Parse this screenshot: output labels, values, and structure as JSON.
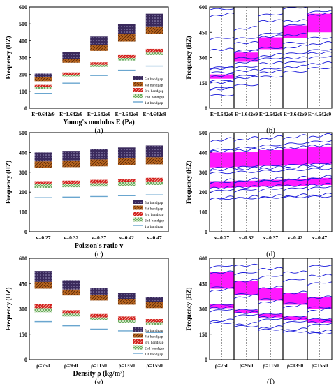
{
  "chart_data": [
    {
      "panel": "a",
      "type": "bar",
      "caption": "(a)",
      "ylabel": "Frequency (HZ)",
      "xlabel": "Young's modulus E (Pa)",
      "ylim": [
        0,
        600
      ],
      "yticks": [
        0,
        100,
        200,
        300,
        400,
        500,
        600
      ],
      "categories": [
        "E=0.642e9",
        "E=1.642e9",
        "E=2.642e9",
        "E=3.642e9",
        "E=4.642e9"
      ],
      "legend": [
        "5st bandgap",
        "4st bandgap",
        "3rd bandgap",
        "2nd bandgap",
        "1st bandgap"
      ],
      "legend_position": "bottom-right",
      "series": [
        {
          "name": "1st bandgap",
          "lines": [
            88,
            148,
            194,
            225,
            250
          ]
        },
        {
          "name": "2nd bandgap",
          "bands": [
            [
              115,
              125
            ],
            [
              188,
              198
            ],
            [
              245,
              258
            ],
            [
              283,
              298
            ],
            [
              315,
              330
            ]
          ]
        },
        {
          "name": "3rd bandgap",
          "bands": [
            [
              125,
              138
            ],
            [
              198,
              212
            ],
            [
              258,
              272
            ],
            [
              298,
              315
            ],
            [
              330,
              352
            ]
          ]
        },
        {
          "name": "4st bandgap",
          "bands": [
            [
              160,
              185
            ],
            [
              270,
              290
            ],
            [
              340,
              375
            ],
            [
              395,
              440
            ],
            [
              440,
              485
            ]
          ]
        },
        {
          "name": "5st bandgap",
          "bands": [
            [
              185,
              205
            ],
            [
              290,
              335
            ],
            [
              375,
              425
            ],
            [
              440,
              500
            ],
            [
              485,
              560
            ]
          ]
        }
      ]
    },
    {
      "panel": "b",
      "type": "line",
      "caption": "(b)",
      "ylabel": "Frequency (HZ)",
      "ylim": [
        0,
        600
      ],
      "yticks": [
        0,
        150,
        300,
        450,
        600
      ],
      "categories": [
        "E=0.642e9",
        "E=1.642e9",
        "E=2.642e9",
        "E=3.642e9",
        "E=4.642e9"
      ],
      "gaps": [
        [
          [
            175,
            200
          ]
        ],
        [
          [
            275,
            330
          ]
        ],
        [
          [
            350,
            420
          ]
        ],
        [
          [
            415,
            490
          ]
        ],
        [
          [
            450,
            560
          ]
        ]
      ],
      "curves": [
        [
          80,
          118,
          128,
          155,
          170,
          200,
          215,
          240,
          250,
          350,
          420,
          560,
          590
        ],
        [
          140,
          185,
          200,
          225,
          250,
          280,
          300,
          340,
          350,
          390,
          420,
          480
        ],
        [
          190,
          220,
          240,
          270,
          300,
          320,
          360,
          430,
          450,
          520,
          560
        ],
        [
          220,
          250,
          280,
          300,
          330,
          370,
          390,
          440,
          500,
          520,
          600
        ],
        [
          240,
          270,
          310,
          330,
          350,
          390,
          420,
          560,
          580
        ]
      ]
    },
    {
      "panel": "c",
      "type": "bar",
      "caption": "(c)",
      "ylabel": "Frequency (HZ)",
      "xlabel": "Poisson's ratio v",
      "ylim": [
        0,
        500
      ],
      "yticks": [
        0,
        100,
        200,
        300,
        400,
        500
      ],
      "categories": [
        "v=0.27",
        "v=0.32",
        "v=0.37",
        "v=0.42",
        "v=0.47"
      ],
      "legend": [
        "5st bandgap",
        "4st bandgap",
        "3rd bandgap",
        "2nd bandgap",
        "1st bandgap"
      ],
      "legend_position": "bottom-right",
      "series": [
        {
          "name": "1st bandgap",
          "lines": [
            172,
            175,
            178,
            182,
            186
          ]
        },
        {
          "name": "2nd bandgap",
          "bands": [
            [
              222,
              240
            ],
            [
              225,
              242
            ],
            [
              228,
              245
            ],
            [
              232,
              250
            ],
            [
              236,
              254
            ]
          ]
        },
        {
          "name": "3rd bandgap",
          "bands": [
            [
              240,
              255
            ],
            [
              242,
              258
            ],
            [
              245,
              262
            ],
            [
              250,
              266
            ],
            [
              254,
              272
            ]
          ]
        },
        {
          "name": "4st bandgap",
          "bands": [
            [
              322,
              355
            ],
            [
              326,
              360
            ],
            [
              330,
              365
            ],
            [
              335,
              370
            ],
            [
              340,
              376
            ]
          ]
        },
        {
          "name": "5st bandgap",
          "bands": [
            [
              355,
              400
            ],
            [
              360,
              408
            ],
            [
              365,
              416
            ],
            [
              370,
              425
            ],
            [
              376,
              435
            ]
          ]
        }
      ]
    },
    {
      "panel": "d",
      "type": "line",
      "caption": "(d)",
      "ylabel": "Frequency (HZ)",
      "ylim": [
        0,
        500
      ],
      "yticks": [
        0,
        100,
        200,
        300,
        400,
        500
      ],
      "categories": [
        "v=0.27",
        "v=0.32",
        "v=0.37",
        "v=0.42",
        "v=0.47"
      ],
      "gaps": [
        [
          [
            325,
            400
          ],
          [
            222,
            255
          ]
        ],
        [
          [
            328,
            405
          ],
          [
            225,
            258
          ]
        ],
        [
          [
            332,
            412
          ],
          [
            228,
            262
          ]
        ],
        [
          [
            336,
            420
          ],
          [
            232,
            266
          ]
        ],
        [
          [
            342,
            430
          ],
          [
            236,
            272
          ]
        ]
      ],
      "curves": [
        [
          170,
          175,
          215,
          225,
          255,
          262,
          300,
          318,
          330,
          410,
          420,
          470
        ],
        [
          172,
          178,
          218,
          228,
          258,
          266,
          305,
          322,
          335,
          415,
          430,
          475
        ],
        [
          175,
          182,
          222,
          232,
          262,
          270,
          310,
          326,
          340,
          420,
          440,
          480
        ],
        [
          178,
          186,
          226,
          236,
          266,
          275,
          315,
          330,
          345,
          428,
          450,
          485
        ],
        [
          180,
          190,
          230,
          240,
          272,
          280,
          320,
          336,
          350,
          438,
          460,
          490
        ]
      ]
    },
    {
      "panel": "e",
      "type": "bar",
      "caption": "(e)",
      "ylabel": "Frequency (HZ)",
      "xlabel": "Density ρ (kg/m³)",
      "ylim": [
        0,
        600
      ],
      "yticks": [
        0,
        150,
        300,
        450,
        600
      ],
      "categories": [
        "ρ=750",
        "ρ=950",
        "ρ=1150",
        "ρ=1350",
        "ρ=1550"
      ],
      "legend": [
        "5st bandgap",
        "4st bandgap",
        "3rd bandgap",
        "2nd bandgap",
        "1st bandgap"
      ],
      "legend_position": "bottom-right",
      "series": [
        {
          "name": "1st bandgap",
          "lines": [
            225,
            200,
            180,
            170,
            160
          ]
        },
        {
          "name": "2nd bandgap",
          "bands": [
            [
              280,
              305
            ],
            [
              255,
              272
            ],
            [
              233,
              250
            ],
            [
              218,
              235
            ],
            [
              205,
              222
            ]
          ]
        },
        {
          "name": "3rd bandgap",
          "bands": [
            [
              305,
              330
            ],
            [
              272,
              292
            ],
            [
              250,
              270
            ],
            [
              235,
              255
            ],
            [
              222,
              240
            ]
          ]
        },
        {
          "name": "4st bandgap",
          "bands": [
            [
              420,
              460
            ],
            [
              380,
              415
            ],
            [
              350,
              385
            ],
            [
              325,
              360
            ],
            [
              305,
              340
            ]
          ]
        },
        {
          "name": "5st bandgap",
          "bands": [
            [
              460,
              525
            ],
            [
              415,
              470
            ],
            [
              385,
              425
            ],
            [
              360,
              395
            ],
            [
              340,
              370
            ]
          ]
        }
      ]
    },
    {
      "panel": "f",
      "type": "line",
      "caption": "(f)",
      "ylabel": "Frequency (HZ)",
      "ylim": [
        0,
        600
      ],
      "yticks": [
        0,
        150,
        300,
        450,
        600
      ],
      "categories": [
        "ρ=750",
        "ρ=950",
        "ρ=1150",
        "ρ=1350",
        "ρ=1550"
      ],
      "gaps": [
        [
          [
            420,
            520
          ],
          [
            305,
            330
          ]
        ],
        [
          [
            385,
            465
          ],
          [
            275,
            295
          ]
        ],
        [
          [
            350,
            425
          ],
          [
            250,
            270
          ]
        ],
        [
          [
            325,
            395
          ],
          [
            235,
            255
          ]
        ],
        [
          [
            300,
            370
          ],
          [
            220,
            240
          ]
        ]
      ],
      "curves": [
        [
          220,
          235,
          300,
          310,
          330,
          420,
          430,
          520,
          560
        ],
        [
          200,
          215,
          270,
          280,
          300,
          380,
          390,
          470,
          520,
          560
        ],
        [
          180,
          195,
          245,
          255,
          275,
          350,
          360,
          430,
          500,
          540
        ],
        [
          168,
          182,
          230,
          240,
          260,
          325,
          335,
          400,
          480,
          520
        ],
        [
          158,
          170,
          215,
          225,
          245,
          300,
          312,
          372,
          460,
          500,
          560
        ]
      ]
    }
  ],
  "colors": {
    "gap_fill": "#ff00ff",
    "curve": "#1a1adb",
    "frame": "#000000",
    "band1": "#6aa6cf",
    "band2": "#4f9a4a",
    "band3": "#d21f1f",
    "band4": "#b8651f",
    "band5": "#3a2a5c"
  }
}
